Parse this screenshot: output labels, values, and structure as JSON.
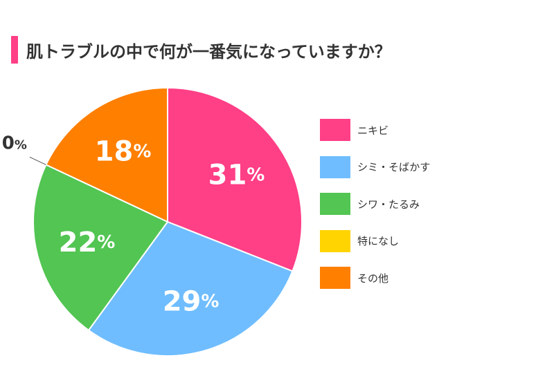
{
  "title": "肌トラブルの中で何が一番気になっていますか？",
  "colors": {
    "accent": "#ff3f86",
    "slices": [
      "#ff3f86",
      "#6fbdff",
      "#52c552",
      "#ffd400",
      "#ff7f00"
    ]
  },
  "chart_data": {
    "type": "pie",
    "title": "肌トラブルの中で何が一番気になっていますか？",
    "categories": [
      "ニキビ",
      "シミ・そばかす",
      "シワ・たるみ",
      "特になし",
      "その他"
    ],
    "values": [
      31,
      29,
      22,
      0,
      18
    ],
    "labels": [
      "31%",
      "29%",
      "22%",
      "0%",
      "18%"
    ],
    "legend_position": "right",
    "start_direction": "top",
    "clockwise": true
  },
  "legend": [
    {
      "label": "ニキビ"
    },
    {
      "label": "シミ・そばかす"
    },
    {
      "label": "シワ・たるみ"
    },
    {
      "label": "特になし"
    },
    {
      "label": "その他"
    }
  ]
}
